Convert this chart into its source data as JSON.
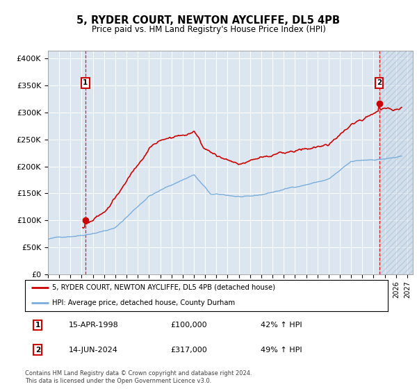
{
  "title": "5, RYDER COURT, NEWTON AYCLIFFE, DL5 4PB",
  "subtitle": "Price paid vs. HM Land Registry's House Price Index (HPI)",
  "line1_label": "5, RYDER COURT, NEWTON AYCLIFFE, DL5 4PB (detached house)",
  "line2_label": "HPI: Average price, detached house, County Durham",
  "line1_color": "#cc0000",
  "line2_color": "#7aaddb",
  "bg_color": "#dce6f1",
  "grid_color": "#ffffff",
  "point1_date": "15-APR-1998",
  "point1_price": 100000,
  "point1_hpi": "42% ↑ HPI",
  "point2_date": "14-JUN-2024",
  "point2_price": 317000,
  "point2_hpi": "49% ↑ HPI",
  "ylabel_ticks": [
    "£0",
    "£50K",
    "£100K",
    "£150K",
    "£200K",
    "£250K",
    "£300K",
    "£350K",
    "£400K"
  ],
  "ytick_values": [
    0,
    50000,
    100000,
    150000,
    200000,
    250000,
    300000,
    350000,
    400000
  ],
  "xlim_start": 1995.0,
  "xlim_end": 2027.5,
  "ylim_min": 0,
  "ylim_max": 415000,
  "footnote": "Contains HM Land Registry data © Crown copyright and database right 2024.\nThis data is licensed under the Open Government Licence v3.0."
}
